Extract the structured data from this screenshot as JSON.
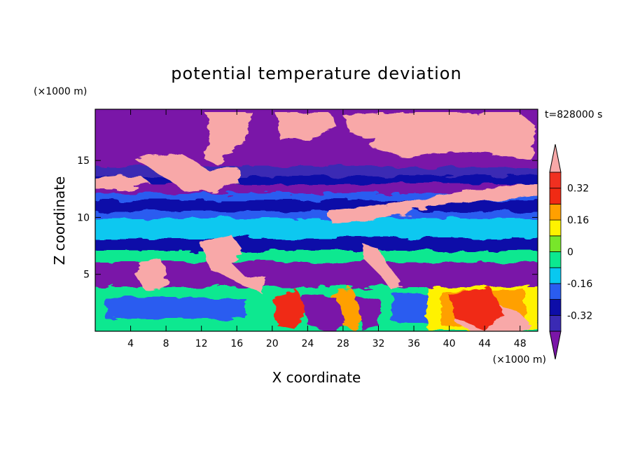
{
  "chart_data": {
    "type": "heatmap",
    "title": "potential temperature deviation",
    "xlabel": "X coordinate",
    "ylabel": "Z coordinate",
    "x_units": "(×1000 m)",
    "y_units": "(×1000 m)",
    "time_label": "t=828000 s",
    "xlim": [
      0,
      50
    ],
    "ylim": [
      0,
      19.5
    ],
    "x_ticks": [
      4,
      8,
      12,
      16,
      20,
      24,
      28,
      32,
      36,
      40,
      44,
      48
    ],
    "y_ticks": [
      5,
      10,
      15
    ],
    "colorbar": {
      "levels": [
        -0.4,
        -0.32,
        -0.24,
        -0.16,
        -0.08,
        0,
        0.08,
        0.16,
        0.24,
        0.32,
        0.4
      ],
      "tick_labels": [
        "0.32",
        "0.16",
        "0",
        "-0.16",
        "-0.32"
      ],
      "tick_values": [
        0.32,
        0.16,
        0,
        -0.16,
        -0.32
      ],
      "colors": [
        "#7a16a8",
        "#3a2ab4",
        "#0d0da8",
        "#2a5cf0",
        "#08c8f0",
        "#0ce890",
        "#78e62a",
        "#fff200",
        "#ffa000",
        "#f02a14",
        "#f03020",
        "#f8a8a8"
      ],
      "extend": "both"
    },
    "layers": [
      {
        "z_range": [
          0,
          3
        ],
        "description_value": "mixed",
        "color": "#0ce890"
      },
      {
        "z_range": [
          4,
          6
        ],
        "value": -0.4,
        "color": "#7a16a8"
      },
      {
        "z_range": [
          6,
          7
        ],
        "value": -0.08,
        "color": "#0ce890"
      },
      {
        "z_range": [
          7,
          8.5
        ],
        "value": -0.32,
        "color": "#0d0da8"
      },
      {
        "z_range": [
          8.5,
          10.5
        ],
        "value": -0.12,
        "color": "#08c8f0"
      },
      {
        "z_range": [
          10.5,
          12
        ],
        "value": -0.28,
        "color": "#2a5cf0"
      },
      {
        "z_range": [
          12,
          14.5
        ],
        "value": -0.36,
        "color": "#3a2ab4"
      },
      {
        "z_range": [
          14.5,
          19.5
        ],
        "value": -0.4,
        "color": "#7a16a8"
      }
    ]
  }
}
